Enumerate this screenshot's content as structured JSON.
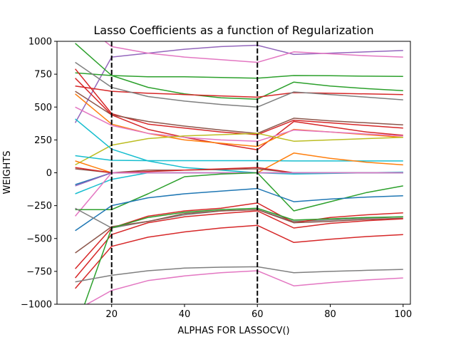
{
  "chart_data": {
    "type": "line",
    "title": "Lasso Coefficients as a function of Regularization",
    "xlabel": "ALPHAS FOR LASSOCV()",
    "ylabel": "WEIGHTS",
    "xlim": [
      5,
      102
    ],
    "ylim": [
      -1000,
      1000
    ],
    "x_ticks": [
      20,
      40,
      60,
      80,
      100
    ],
    "y_ticks": [
      -1000,
      -750,
      -500,
      -250,
      0,
      250,
      500,
      750,
      1000
    ],
    "x_tick_labels": [
      "20",
      "40",
      "60",
      "80",
      "100"
    ],
    "y_tick_labels": [
      "−1000",
      "−750",
      "−500",
      "−250",
      "0",
      "250",
      "500",
      "750",
      "1000"
    ],
    "grid": false,
    "x": [
      10,
      20,
      30,
      40,
      50,
      60,
      70,
      80,
      90,
      100
    ],
    "vertical_lines": [
      {
        "x": 20,
        "style": "dashed",
        "color": "#000000"
      },
      {
        "x": 60,
        "style": "dashed",
        "color": "#000000"
      }
    ],
    "series": [
      {
        "color": "#9467bd",
        "values": [
          380,
          880,
          910,
          940,
          960,
          970,
          900,
          910,
          920,
          930
        ]
      },
      {
        "color": "#e377c2",
        "values": [
          1180,
          960,
          910,
          880,
          860,
          840,
          920,
          905,
          890,
          880
        ]
      },
      {
        "color": "#2ca02c",
        "values": [
          985,
          740,
          730,
          730,
          725,
          720,
          740,
          738,
          735,
          733
        ]
      },
      {
        "color": "#2ca02c",
        "values": [
          760,
          740,
          650,
          600,
          570,
          560,
          690,
          660,
          640,
          625
        ]
      },
      {
        "color": "#d62728",
        "values": [
          660,
          620,
          605,
          595,
          585,
          575,
          610,
          605,
          600,
          595
        ]
      },
      {
        "color": "#7f7f7f",
        "values": [
          840,
          650,
          580,
          545,
          520,
          500,
          615,
          595,
          575,
          555
        ]
      },
      {
        "color": "#d62728",
        "values": [
          790,
          450,
          370,
          340,
          310,
          290,
          400,
          380,
          360,
          340
        ]
      },
      {
        "color": "#8c564b",
        "values": [
          620,
          440,
          390,
          355,
          325,
          300,
          415,
          395,
          380,
          365
        ]
      },
      {
        "color": "#d62728",
        "values": [
          720,
          440,
          330,
          270,
          220,
          175,
          390,
          350,
          310,
          285
        ]
      },
      {
        "color": "#ff7f0e",
        "values": [
          600,
          370,
          300,
          250,
          225,
          200,
          330,
          310,
          290,
          270
        ]
      },
      {
        "color": "#e377c2",
        "values": [
          500,
          360,
          300,
          270,
          250,
          240,
          325,
          310,
          295,
          280
        ]
      },
      {
        "color": "#bcbd22",
        "values": [
          60,
          210,
          260,
          280,
          290,
          300,
          240,
          250,
          260,
          270
        ]
      },
      {
        "color": "#17becf",
        "values": [
          410,
          180,
          90,
          40,
          20,
          0,
          -10,
          -5,
          0,
          5
        ]
      },
      {
        "color": "#17becf",
        "values": [
          130,
          95,
          92,
          92,
          92,
          92,
          90,
          90,
          90,
          90
        ]
      },
      {
        "color": "#ff7f0e",
        "values": [
          90,
          0,
          0,
          0,
          0,
          0,
          150,
          110,
          80,
          60
        ]
      },
      {
        "color": "#8c564b",
        "values": [
          30,
          0,
          20,
          20,
          25,
          30,
          0,
          0,
          0,
          0
        ]
      },
      {
        "color": "#d62728",
        "values": [
          40,
          0,
          10,
          20,
          30,
          40,
          0,
          0,
          0,
          0
        ]
      },
      {
        "color": "#1f77b4",
        "values": [
          -90,
          0,
          0,
          0,
          0,
          0,
          0,
          0,
          0,
          0
        ]
      },
      {
        "color": "#9467bd",
        "values": [
          -100,
          0,
          0,
          0,
          0,
          0,
          0,
          0,
          0,
          0
        ]
      },
      {
        "color": "#17becf",
        "values": [
          -160,
          -50,
          0,
          0,
          0,
          0,
          0,
          0,
          0,
          0
        ]
      },
      {
        "color": "#e377c2",
        "values": [
          -330,
          0,
          0,
          0,
          0,
          0,
          0,
          0,
          0,
          0
        ]
      },
      {
        "color": "#2ca02c",
        "values": [
          -280,
          -280,
          -160,
          -30,
          -10,
          0,
          -290,
          -220,
          -150,
          -100
        ]
      },
      {
        "color": "#1f77b4",
        "values": [
          -440,
          -250,
          -190,
          -160,
          -140,
          -120,
          -220,
          -200,
          -185,
          -175
        ]
      },
      {
        "color": "#7f7f7f",
        "values": [
          -270,
          -420,
          -370,
          -320,
          -290,
          -280,
          -370,
          -360,
          -345,
          -335
        ]
      },
      {
        "color": "#d62728",
        "values": [
          -730,
          -420,
          -330,
          -290,
          -270,
          -230,
          -380,
          -340,
          -320,
          -305
        ]
      },
      {
        "color": "#8c564b",
        "values": [
          -610,
          -410,
          -370,
          -310,
          -290,
          -280,
          -380,
          -370,
          -355,
          -345
        ]
      },
      {
        "color": "#d62728",
        "values": [
          -800,
          -470,
          -380,
          -335,
          -310,
          -290,
          -420,
          -385,
          -365,
          -350
        ]
      },
      {
        "color": "#d62728",
        "values": [
          -880,
          -560,
          -490,
          -450,
          -420,
          -400,
          -530,
          -505,
          -485,
          -470
        ]
      },
      {
        "color": "#2ca02c",
        "values": [
          -1200,
          -420,
          -340,
          -300,
          -280,
          -270,
          -360,
          -350,
          -340,
          -335
        ]
      },
      {
        "color": "#7f7f7f",
        "values": [
          -830,
          -780,
          -745,
          -725,
          -718,
          -715,
          -760,
          -750,
          -742,
          -735
        ]
      },
      {
        "color": "#e377c2",
        "values": [
          -1050,
          -895,
          -820,
          -785,
          -760,
          -745,
          -860,
          -835,
          -815,
          -800
        ]
      }
    ]
  }
}
